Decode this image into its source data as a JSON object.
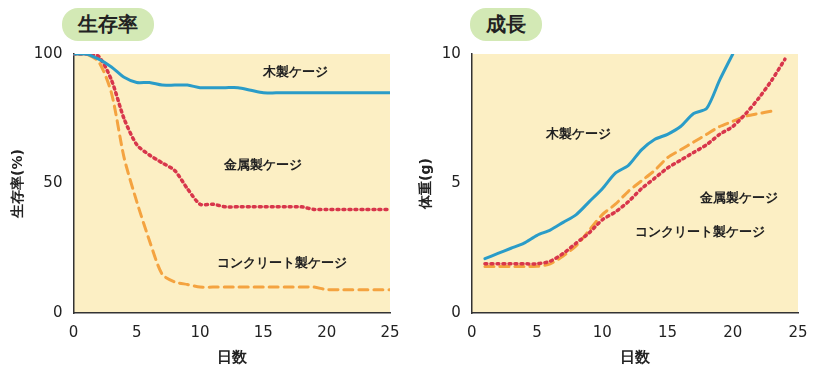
{
  "chart_data": [
    {
      "type": "line",
      "title": "生存率",
      "x_label": "日数",
      "y_label": "生存率(%)",
      "x": [
        0,
        1,
        2,
        3,
        4,
        5,
        6,
        7,
        8,
        9,
        10,
        11,
        12,
        13,
        14,
        15,
        16,
        17,
        18,
        19,
        20,
        21,
        22,
        23,
        24,
        25
      ],
      "series": [
        {
          "name": "木製ケージ",
          "color": "#2a9cc8",
          "line_style": "solid",
          "values": [
            100,
            100,
            98,
            95,
            91,
            89,
            89,
            88,
            88,
            88,
            87,
            87,
            87,
            87,
            86,
            85,
            85,
            85,
            85,
            85,
            85,
            85,
            85,
            85,
            85,
            85
          ]
        },
        {
          "name": "金属製ケージ",
          "color": "#d8364b",
          "line_style": "dotted",
          "values": [
            100,
            100,
            99,
            90,
            75,
            65,
            61,
            58,
            55,
            48,
            42,
            42,
            41,
            41,
            41,
            41,
            41,
            41,
            41,
            40,
            40,
            40,
            40,
            40,
            40,
            40
          ]
        },
        {
          "name": "コンクリート製ケージ",
          "color": "#f4a340",
          "line_style": "dashed",
          "values": [
            100,
            100,
            97,
            85,
            60,
            43,
            28,
            15,
            12,
            11,
            10,
            10,
            10,
            10,
            10,
            10,
            10,
            10,
            10,
            10,
            9,
            9,
            9,
            9,
            9,
            9
          ]
        }
      ],
      "xlim": [
        0,
        25
      ],
      "xticks": [
        0,
        5,
        10,
        15,
        20,
        25
      ],
      "ylim": [
        0,
        100
      ],
      "yticks": [
        0,
        50,
        100
      ],
      "grid": false
    },
    {
      "type": "line",
      "title": "成長",
      "x_label": "日数",
      "y_label": "体重(g)",
      "x": [
        0,
        1,
        2,
        3,
        4,
        5,
        6,
        7,
        8,
        9,
        10,
        11,
        12,
        13,
        14,
        15,
        16,
        17,
        18,
        19,
        20,
        21,
        22,
        23,
        24,
        25
      ],
      "series": [
        {
          "name": "木製ケージ",
          "color": "#2a9cc8",
          "line_style": "solid",
          "values": [
            null,
            2.1,
            2.3,
            2.5,
            2.7,
            3.0,
            3.2,
            3.5,
            3.8,
            4.3,
            4.8,
            5.4,
            5.7,
            6.3,
            6.7,
            6.9,
            7.2,
            7.7,
            7.9,
            9.0,
            10.0,
            null,
            null,
            null,
            null,
            null
          ]
        },
        {
          "name": "金属製ケージ",
          "color": "#d8364b",
          "line_style": "dotted",
          "values": [
            null,
            1.9,
            1.9,
            1.9,
            1.9,
            1.9,
            2.0,
            2.3,
            2.7,
            3.1,
            3.6,
            3.9,
            4.3,
            4.8,
            5.2,
            5.6,
            5.9,
            6.2,
            6.5,
            6.9,
            7.2,
            7.7,
            8.3,
            9.0,
            9.8,
            null
          ]
        },
        {
          "name": "コンクリート製ケージ",
          "color": "#f4a340",
          "line_style": "dashed",
          "values": [
            null,
            1.8,
            1.8,
            1.8,
            1.8,
            1.8,
            1.9,
            2.2,
            2.6,
            3.2,
            3.8,
            4.2,
            4.7,
            5.1,
            5.5,
            6.0,
            6.3,
            6.6,
            6.9,
            7.2,
            7.4,
            7.6,
            7.7,
            7.8,
            null,
            null
          ]
        }
      ],
      "xlim": [
        0,
        25
      ],
      "xticks": [
        0,
        5,
        10,
        15,
        20,
        25
      ],
      "ylim": [
        0,
        10
      ],
      "yticks": [
        0,
        5,
        10
      ],
      "grid": false
    }
  ]
}
